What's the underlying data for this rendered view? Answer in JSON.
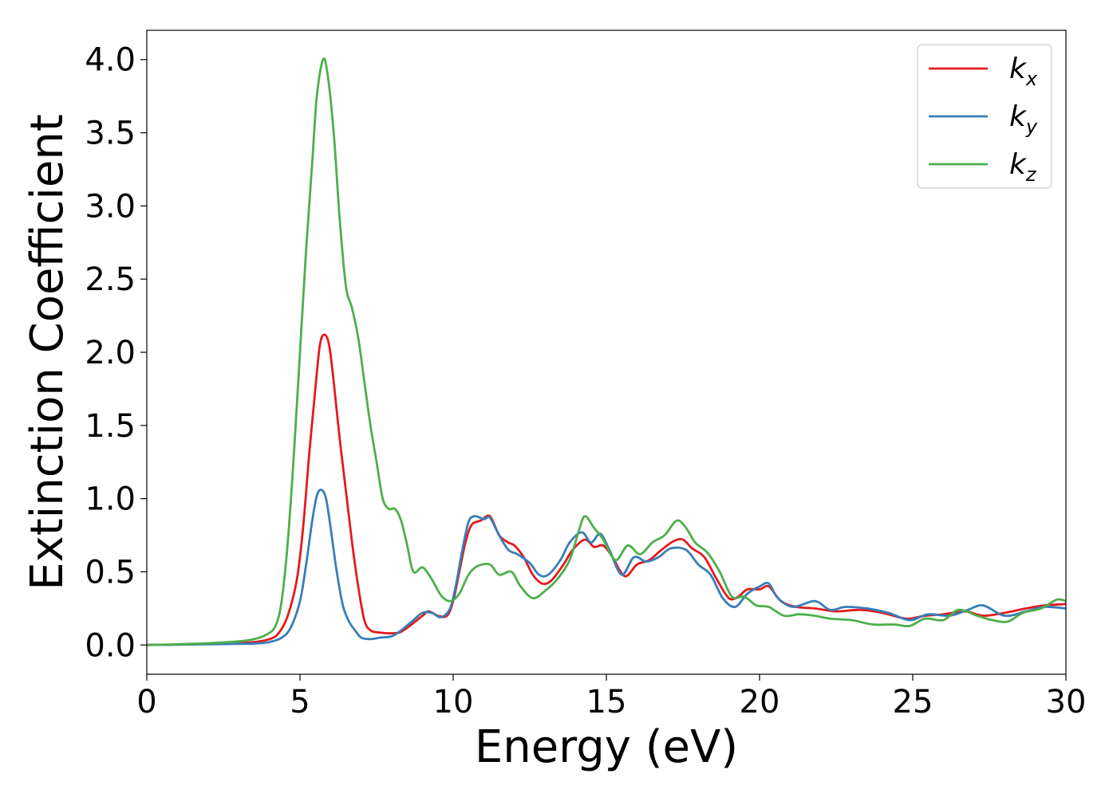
{
  "chart_data": {
    "type": "line",
    "xlabel": "Energy (eV)",
    "ylabel": "Extinction Coefficient",
    "xlim": [
      0,
      30
    ],
    "ylim": [
      -0.2,
      4.2
    ],
    "x_ticks": [
      "0",
      "5",
      "10",
      "15",
      "20",
      "25",
      "30"
    ],
    "y_ticks": [
      "0.0",
      "0.5",
      "1.0",
      "1.5",
      "2.0",
      "2.5",
      "3.0",
      "3.5",
      "4.0"
    ],
    "grid": false,
    "legend_position": "top-right",
    "series": [
      {
        "name": "k",
        "subscript": "x",
        "color": "#e41a1c",
        "points": [
          [
            0,
            0
          ],
          [
            1,
            0.003
          ],
          [
            2,
            0.008
          ],
          [
            3,
            0.015
          ],
          [
            3.5,
            0.02
          ],
          [
            4,
            0.04
          ],
          [
            4.3,
            0.08
          ],
          [
            4.6,
            0.2
          ],
          [
            4.9,
            0.45
          ],
          [
            5.1,
            0.8
          ],
          [
            5.3,
            1.3
          ],
          [
            5.5,
            1.75
          ],
          [
            5.65,
            2.05
          ],
          [
            5.8,
            2.12
          ],
          [
            5.95,
            2.05
          ],
          [
            6.1,
            1.8
          ],
          [
            6.3,
            1.4
          ],
          [
            6.5,
            1.05
          ],
          [
            6.7,
            0.7
          ],
          [
            6.9,
            0.4
          ],
          [
            7.1,
            0.17
          ],
          [
            7.3,
            0.1
          ],
          [
            7.6,
            0.085
          ],
          [
            8,
            0.08
          ],
          [
            8.3,
            0.09
          ],
          [
            8.7,
            0.15
          ],
          [
            9,
            0.2
          ],
          [
            9.2,
            0.23
          ],
          [
            9.5,
            0.2
          ],
          [
            9.8,
            0.2
          ],
          [
            10,
            0.3
          ],
          [
            10.2,
            0.5
          ],
          [
            10.4,
            0.7
          ],
          [
            10.6,
            0.82
          ],
          [
            10.9,
            0.85
          ],
          [
            11.2,
            0.88
          ],
          [
            11.5,
            0.75
          ],
          [
            11.8,
            0.7
          ],
          [
            12,
            0.68
          ],
          [
            12.3,
            0.6
          ],
          [
            12.6,
            0.48
          ],
          [
            12.9,
            0.42
          ],
          [
            13.2,
            0.44
          ],
          [
            13.6,
            0.55
          ],
          [
            13.9,
            0.65
          ],
          [
            14.3,
            0.72
          ],
          [
            14.6,
            0.67
          ],
          [
            14.9,
            0.68
          ],
          [
            15.2,
            0.6
          ],
          [
            15.6,
            0.47
          ],
          [
            16,
            0.55
          ],
          [
            16.4,
            0.58
          ],
          [
            16.8,
            0.65
          ],
          [
            17.2,
            0.71
          ],
          [
            17.5,
            0.72
          ],
          [
            17.8,
            0.66
          ],
          [
            18.2,
            0.6
          ],
          [
            18.6,
            0.45
          ],
          [
            19,
            0.32
          ],
          [
            19.3,
            0.33
          ],
          [
            19.6,
            0.38
          ],
          [
            20,
            0.38
          ],
          [
            20.3,
            0.4
          ],
          [
            20.7,
            0.3
          ],
          [
            21.2,
            0.26
          ],
          [
            21.8,
            0.25
          ],
          [
            22.5,
            0.23
          ],
          [
            23.3,
            0.24
          ],
          [
            24,
            0.22
          ],
          [
            24.8,
            0.18
          ],
          [
            25.4,
            0.2
          ],
          [
            26,
            0.21
          ],
          [
            26.7,
            0.23
          ],
          [
            27.3,
            0.2
          ],
          [
            28,
            0.22
          ],
          [
            28.7,
            0.25
          ],
          [
            29.3,
            0.27
          ],
          [
            30,
            0.28
          ]
        ]
      },
      {
        "name": "k",
        "subscript": "y",
        "color": "#377eb8",
        "points": [
          [
            0,
            0
          ],
          [
            1,
            0.002
          ],
          [
            2,
            0.005
          ],
          [
            3,
            0.008
          ],
          [
            3.5,
            0.01
          ],
          [
            4,
            0.02
          ],
          [
            4.4,
            0.05
          ],
          [
            4.7,
            0.12
          ],
          [
            5,
            0.3
          ],
          [
            5.2,
            0.55
          ],
          [
            5.4,
            0.85
          ],
          [
            5.55,
            1.02
          ],
          [
            5.7,
            1.06
          ],
          [
            5.85,
            1.0
          ],
          [
            6,
            0.8
          ],
          [
            6.2,
            0.5
          ],
          [
            6.4,
            0.27
          ],
          [
            6.6,
            0.16
          ],
          [
            6.8,
            0.1
          ],
          [
            7,
            0.05
          ],
          [
            7.3,
            0.04
          ],
          [
            7.6,
            0.05
          ],
          [
            8,
            0.06
          ],
          [
            8.3,
            0.1
          ],
          [
            8.7,
            0.17
          ],
          [
            9,
            0.22
          ],
          [
            9.3,
            0.22
          ],
          [
            9.6,
            0.19
          ],
          [
            9.9,
            0.25
          ],
          [
            10.1,
            0.42
          ],
          [
            10.3,
            0.65
          ],
          [
            10.5,
            0.84
          ],
          [
            10.7,
            0.88
          ],
          [
            11,
            0.86
          ],
          [
            11.2,
            0.87
          ],
          [
            11.5,
            0.75
          ],
          [
            11.8,
            0.65
          ],
          [
            12.1,
            0.62
          ],
          [
            12.5,
            0.56
          ],
          [
            12.8,
            0.48
          ],
          [
            13.1,
            0.48
          ],
          [
            13.5,
            0.58
          ],
          [
            13.8,
            0.7
          ],
          [
            14.2,
            0.77
          ],
          [
            14.5,
            0.7
          ],
          [
            14.8,
            0.76
          ],
          [
            15.1,
            0.65
          ],
          [
            15.5,
            0.48
          ],
          [
            15.9,
            0.6
          ],
          [
            16.3,
            0.57
          ],
          [
            16.7,
            0.6
          ],
          [
            17.1,
            0.66
          ],
          [
            17.6,
            0.65
          ],
          [
            18,
            0.55
          ],
          [
            18.4,
            0.48
          ],
          [
            18.8,
            0.32
          ],
          [
            19.2,
            0.26
          ],
          [
            19.6,
            0.35
          ],
          [
            20,
            0.4
          ],
          [
            20.3,
            0.42
          ],
          [
            20.6,
            0.32
          ],
          [
            21.1,
            0.26
          ],
          [
            21.8,
            0.3
          ],
          [
            22.3,
            0.24
          ],
          [
            22.8,
            0.26
          ],
          [
            23.5,
            0.25
          ],
          [
            24.2,
            0.22
          ],
          [
            24.9,
            0.17
          ],
          [
            25.5,
            0.21
          ],
          [
            26.2,
            0.2
          ],
          [
            26.8,
            0.24
          ],
          [
            27.3,
            0.27
          ],
          [
            28,
            0.2
          ],
          [
            28.7,
            0.23
          ],
          [
            29.3,
            0.26
          ],
          [
            30,
            0.25
          ]
        ]
      },
      {
        "name": "k",
        "subscript": "z",
        "color": "#4daf4a",
        "points": [
          [
            0,
            0
          ],
          [
            1,
            0.005
          ],
          [
            2,
            0.012
          ],
          [
            3,
            0.025
          ],
          [
            3.5,
            0.04
          ],
          [
            3.9,
            0.07
          ],
          [
            4.2,
            0.13
          ],
          [
            4.4,
            0.3
          ],
          [
            4.6,
            0.7
          ],
          [
            4.8,
            1.3
          ],
          [
            5,
            2.0
          ],
          [
            5.2,
            2.7
          ],
          [
            5.4,
            3.3
          ],
          [
            5.55,
            3.75
          ],
          [
            5.75,
            4.0
          ],
          [
            5.9,
            3.9
          ],
          [
            6.1,
            3.5
          ],
          [
            6.3,
            2.9
          ],
          [
            6.5,
            2.45
          ],
          [
            6.7,
            2.3
          ],
          [
            6.9,
            2.1
          ],
          [
            7.1,
            1.8
          ],
          [
            7.3,
            1.5
          ],
          [
            7.5,
            1.25
          ],
          [
            7.7,
            1.0
          ],
          [
            7.9,
            0.93
          ],
          [
            8.1,
            0.93
          ],
          [
            8.3,
            0.85
          ],
          [
            8.5,
            0.68
          ],
          [
            8.7,
            0.5
          ],
          [
            9,
            0.53
          ],
          [
            9.3,
            0.45
          ],
          [
            9.6,
            0.34
          ],
          [
            9.9,
            0.3
          ],
          [
            10.2,
            0.35
          ],
          [
            10.5,
            0.48
          ],
          [
            10.8,
            0.54
          ],
          [
            11.2,
            0.55
          ],
          [
            11.5,
            0.48
          ],
          [
            11.9,
            0.5
          ],
          [
            12.2,
            0.4
          ],
          [
            12.6,
            0.32
          ],
          [
            13,
            0.37
          ],
          [
            13.4,
            0.45
          ],
          [
            13.8,
            0.58
          ],
          [
            14.1,
            0.78
          ],
          [
            14.3,
            0.88
          ],
          [
            14.6,
            0.8
          ],
          [
            14.9,
            0.72
          ],
          [
            15.3,
            0.58
          ],
          [
            15.7,
            0.68
          ],
          [
            16.1,
            0.62
          ],
          [
            16.5,
            0.7
          ],
          [
            16.9,
            0.75
          ],
          [
            17.3,
            0.85
          ],
          [
            17.6,
            0.8
          ],
          [
            17.9,
            0.7
          ],
          [
            18.3,
            0.63
          ],
          [
            18.7,
            0.5
          ],
          [
            19.1,
            0.33
          ],
          [
            19.5,
            0.33
          ],
          [
            19.9,
            0.27
          ],
          [
            20.3,
            0.26
          ],
          [
            20.8,
            0.2
          ],
          [
            21.3,
            0.21
          ],
          [
            21.8,
            0.2
          ],
          [
            22.3,
            0.18
          ],
          [
            23,
            0.17
          ],
          [
            23.7,
            0.14
          ],
          [
            24.4,
            0.14
          ],
          [
            24.9,
            0.13
          ],
          [
            25.4,
            0.18
          ],
          [
            26,
            0.17
          ],
          [
            26.5,
            0.24
          ],
          [
            27.1,
            0.2
          ],
          [
            27.6,
            0.17
          ],
          [
            28.1,
            0.16
          ],
          [
            28.6,
            0.22
          ],
          [
            29.2,
            0.25
          ],
          [
            29.7,
            0.31
          ],
          [
            30,
            0.3
          ]
        ]
      }
    ]
  }
}
